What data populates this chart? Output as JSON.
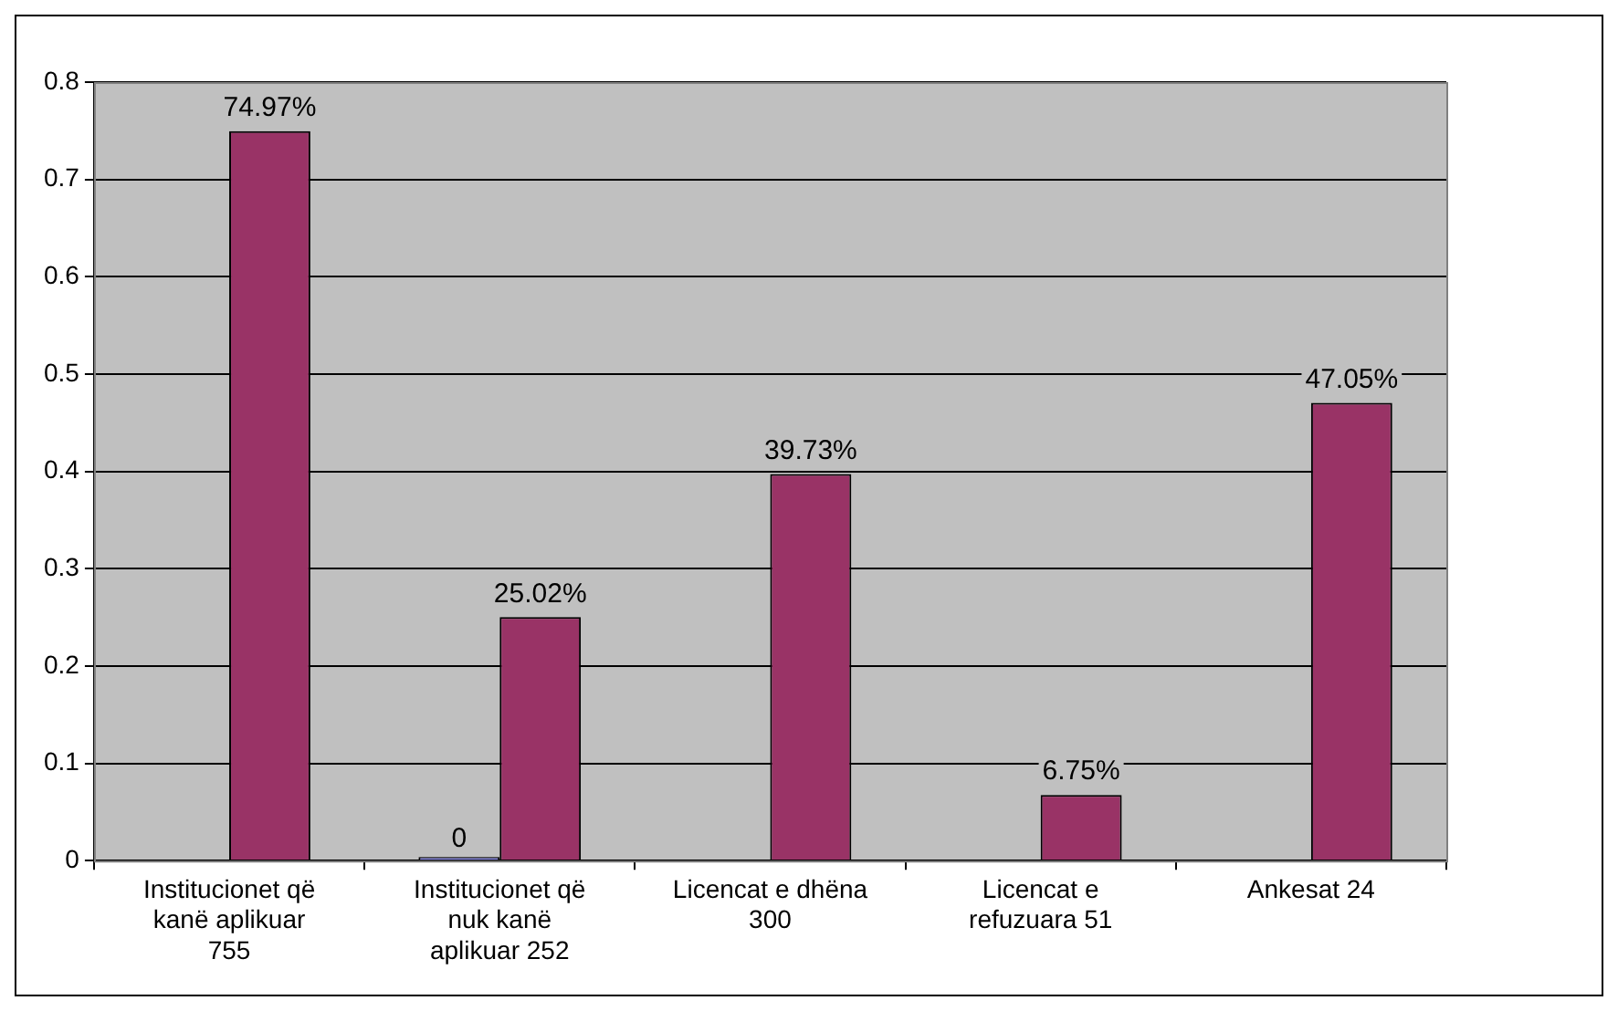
{
  "chart_data": {
    "type": "bar",
    "categories": [
      "Institucionet që kanë aplikuar 755",
      "Institucionet që nuk kanë aplikuar 252",
      "Licencat e dhëna 300",
      "Licencat e refuzuara 51",
      "Ankesat 24"
    ],
    "series": [
      {
        "color": "#9999ff",
        "values": [
          null,
          0,
          null,
          null,
          null
        ],
        "value_labels": [
          null,
          "0",
          null,
          null,
          null
        ]
      },
      {
        "color": "#993366",
        "values": [
          0.7497,
          0.2502,
          0.3973,
          0.0675,
          0.4705
        ],
        "value_labels": [
          "74.97%",
          "25.02%",
          "39.73%",
          "6.75%",
          "47.05%"
        ]
      }
    ],
    "ylim": [
      0,
      0.8
    ],
    "yticks": [
      0,
      0.1,
      0.2,
      0.3,
      0.4,
      0.5,
      0.6,
      0.7,
      0.8
    ],
    "grid": "y",
    "legend": false
  }
}
